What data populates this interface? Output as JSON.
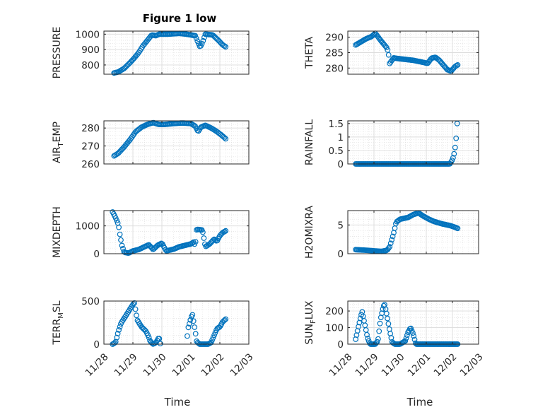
{
  "figure": {
    "title": "Figure 1 low",
    "xlabel": "Time"
  },
  "chart_data": [
    {
      "type": "scatter",
      "name": "PRESSURE",
      "ylabel": "PRESSURE",
      "ylabel_parts": [
        "PRESSURE"
      ],
      "xlim": [
        0,
        5
      ],
      "ylim": [
        740,
        1020
      ],
      "yticks": [
        800,
        900,
        1000
      ],
      "ytick_labels": [
        "800",
        "900",
        "1000"
      ],
      "xticks": [
        0,
        1,
        2,
        3,
        4,
        5
      ],
      "xtick_labels": [
        "11/28",
        "11/29",
        "11/30",
        "12/01",
        "12/02",
        "12/03"
      ],
      "show_xticklabels": false,
      "title": "Figure 1 low",
      "keys": [
        [
          0.35,
          748
        ],
        [
          0.5,
          755
        ],
        [
          0.7,
          778
        ],
        [
          0.9,
          815
        ],
        [
          1.05,
          845
        ],
        [
          1.2,
          880
        ],
        [
          1.35,
          925
        ],
        [
          1.5,
          960
        ],
        [
          1.65,
          995
        ],
        [
          1.8,
          990
        ],
        [
          1.9,
          1000
        ],
        [
          2.2,
          1000
        ],
        [
          2.6,
          1005
        ],
        [
          2.85,
          1000
        ],
        [
          3.15,
          990
        ],
        [
          3.25,
          945
        ],
        [
          3.32,
          915
        ],
        [
          3.4,
          945
        ],
        [
          3.5,
          1000
        ],
        [
          3.75,
          995
        ],
        [
          3.95,
          960
        ],
        [
          4.1,
          930
        ],
        [
          4.2,
          918
        ]
      ],
      "gaps": [],
      "n": 100
    },
    {
      "type": "scatter",
      "name": "THETA",
      "ylabel": "THETA",
      "ylabel_parts": [
        "THETA"
      ],
      "xlim": [
        0,
        5
      ],
      "ylim": [
        278,
        292
      ],
      "yticks": [
        280,
        285,
        290
      ],
      "ytick_labels": [
        "280",
        "285",
        "290"
      ],
      "xticks": [
        0,
        1,
        2,
        3,
        4,
        5
      ],
      "xtick_labels": [
        "11/28",
        "11/29",
        "11/30",
        "12/01",
        "12/02",
        "12/03"
      ],
      "show_xticklabels": false,
      "title": "",
      "keys": [
        [
          0.3,
          287.5
        ],
        [
          0.5,
          288.5
        ],
        [
          0.7,
          289.5
        ],
        [
          0.9,
          290.2
        ],
        [
          1.05,
          291.3
        ],
        [
          1.2,
          289.6
        ],
        [
          1.35,
          288
        ],
        [
          1.5,
          286.5
        ],
        [
          1.55,
          285
        ],
        [
          1.6,
          281.5
        ],
        [
          1.75,
          283.3
        ],
        [
          2.0,
          283
        ],
        [
          2.5,
          282.5
        ],
        [
          2.8,
          282
        ],
        [
          3.05,
          281.5
        ],
        [
          3.2,
          283.2
        ],
        [
          3.35,
          283.5
        ],
        [
          3.5,
          282.5
        ],
        [
          3.65,
          281
        ],
        [
          3.8,
          279.5
        ],
        [
          3.95,
          279
        ],
        [
          4.1,
          280.5
        ],
        [
          4.2,
          281
        ]
      ],
      "gaps": [],
      "n": 100
    },
    {
      "type": "scatter",
      "name": "AIR_TEMP",
      "ylabel": "AIR_TEMP",
      "ylabel_parts": [
        "AIR",
        "T",
        "EMP"
      ],
      "xlim": [
        0,
        5
      ],
      "ylim": [
        260,
        284
      ],
      "yticks": [
        260,
        270,
        280
      ],
      "ytick_labels": [
        "260",
        "270",
        "280"
      ],
      "xticks": [
        0,
        1,
        2,
        3,
        4,
        5
      ],
      "xtick_labels": [
        "11/28",
        "11/29",
        "11/30",
        "12/01",
        "12/02",
        "12/03"
      ],
      "show_xticklabels": false,
      "title": "",
      "keys": [
        [
          0.35,
          264.5
        ],
        [
          0.5,
          266
        ],
        [
          0.7,
          269.5
        ],
        [
          0.9,
          273.5
        ],
        [
          1.1,
          278
        ],
        [
          1.3,
          280.5
        ],
        [
          1.5,
          282
        ],
        [
          1.7,
          283
        ],
        [
          1.9,
          282
        ],
        [
          2.1,
          282
        ],
        [
          2.4,
          282.5
        ],
        [
          2.7,
          282.8
        ],
        [
          3.0,
          282.5
        ],
        [
          3.15,
          281
        ],
        [
          3.25,
          278
        ],
        [
          3.35,
          280.5
        ],
        [
          3.5,
          281.5
        ],
        [
          3.7,
          280
        ],
        [
          3.9,
          278
        ],
        [
          4.1,
          275.5
        ],
        [
          4.2,
          274
        ]
      ],
      "gaps": [],
      "n": 100
    },
    {
      "type": "scatter",
      "name": "RAINFALL",
      "ylabel": "RAINFALL",
      "ylabel_parts": [
        "RAINFALL"
      ],
      "xlim": [
        0,
        5
      ],
      "ylim": [
        0,
        1.6
      ],
      "yticks": [
        0,
        0.5,
        1,
        1.5
      ],
      "ytick_labels": [
        "0",
        "0.5",
        "1",
        "1.5"
      ],
      "xticks": [
        0,
        1,
        2,
        3,
        4,
        5
      ],
      "xtick_labels": [
        "11/28",
        "11/29",
        "11/30",
        "12/01",
        "12/02",
        "12/03"
      ],
      "show_xticklabels": false,
      "title": "",
      "keys": [
        [
          0.3,
          0
        ],
        [
          3.9,
          0
        ],
        [
          3.98,
          0.12
        ],
        [
          4.05,
          0.3
        ],
        [
          4.1,
          0.6
        ],
        [
          4.13,
          0.8
        ],
        [
          4.18,
          1.5
        ]
      ],
      "gaps": [],
      "n": 100
    },
    {
      "type": "scatter",
      "name": "MIXDEPTH",
      "ylabel": "MIXDEPTH",
      "ylabel_parts": [
        "MIXDEPTH"
      ],
      "xlim": [
        0,
        5
      ],
      "ylim": [
        0,
        1550
      ],
      "yticks": [
        0,
        1000
      ],
      "ytick_labels": [
        "0",
        "1000"
      ],
      "xticks": [
        0,
        1,
        2,
        3,
        4,
        5
      ],
      "xtick_labels": [
        "11/28",
        "11/29",
        "11/30",
        "12/01",
        "12/02",
        "12/03"
      ],
      "show_xticklabels": false,
      "title": "",
      "keys": [
        [
          0.3,
          1500
        ],
        [
          0.4,
          1300
        ],
        [
          0.5,
          1050
        ],
        [
          0.55,
          700
        ],
        [
          0.62,
          300
        ],
        [
          0.7,
          50
        ],
        [
          0.85,
          20
        ],
        [
          1.0,
          100
        ],
        [
          1.2,
          150
        ],
        [
          1.4,
          250
        ],
        [
          1.55,
          320
        ],
        [
          1.7,
          150
        ],
        [
          1.85,
          300
        ],
        [
          2.0,
          380
        ],
        [
          2.15,
          100
        ],
        [
          2.4,
          160
        ],
        [
          2.6,
          250
        ],
        [
          2.8,
          300
        ],
        [
          3.0,
          350
        ],
        [
          3.1,
          420
        ],
        [
          3.15,
          280
        ],
        [
          3.2,
          880
        ],
        [
          3.4,
          850
        ],
        [
          3.5,
          250
        ],
        [
          3.65,
          350
        ],
        [
          3.8,
          520
        ],
        [
          3.9,
          450
        ],
        [
          4.0,
          650
        ],
        [
          4.1,
          760
        ],
        [
          4.2,
          820
        ]
      ],
      "gaps": [],
      "n": 110
    },
    {
      "type": "scatter",
      "name": "H2OMIXRA",
      "ylabel": "H2OMIXRA",
      "ylabel_parts": [
        "H2OMIXRA"
      ],
      "xlim": [
        0,
        5
      ],
      "ylim": [
        0,
        7.5
      ],
      "yticks": [
        0,
        5
      ],
      "ytick_labels": [
        "0",
        "5"
      ],
      "xticks": [
        0,
        1,
        2,
        3,
        4,
        5
      ],
      "xtick_labels": [
        "11/28",
        "11/29",
        "11/30",
        "12/01",
        "12/02",
        "12/03"
      ],
      "show_xticklabels": false,
      "title": "",
      "keys": [
        [
          0.3,
          0.7
        ],
        [
          0.7,
          0.6
        ],
        [
          1.0,
          0.5
        ],
        [
          1.3,
          0.4
        ],
        [
          1.5,
          0.6
        ],
        [
          1.6,
          1.2
        ],
        [
          1.75,
          3.5
        ],
        [
          1.85,
          5.5
        ],
        [
          2.0,
          6.0
        ],
        [
          2.3,
          6.3
        ],
        [
          2.5,
          6.8
        ],
        [
          2.7,
          7.1
        ],
        [
          2.9,
          6.5
        ],
        [
          3.1,
          6.0
        ],
        [
          3.3,
          5.6
        ],
        [
          3.6,
          5.2
        ],
        [
          3.9,
          4.9
        ],
        [
          4.1,
          4.6
        ],
        [
          4.2,
          4.4
        ]
      ],
      "gaps": [],
      "n": 100
    },
    {
      "type": "scatter",
      "name": "TERR_MSL",
      "ylabel": "TERR_MSL",
      "ylabel_parts": [
        "TERR",
        "M",
        "SL"
      ],
      "xlim": [
        0,
        5
      ],
      "ylim": [
        0,
        500
      ],
      "yticks": [
        0,
        500
      ],
      "ytick_labels": [
        "0",
        "500"
      ],
      "xticks": [
        0,
        1,
        2,
        3,
        4,
        5
      ],
      "xtick_labels": [
        "11/28",
        "11/29",
        "11/30",
        "12/01",
        "12/02",
        "12/03"
      ],
      "show_xticklabels": true,
      "title": "",
      "keys": [
        [
          0.3,
          0
        ],
        [
          0.4,
          20
        ],
        [
          0.5,
          150
        ],
        [
          0.6,
          250
        ],
        [
          0.7,
          300
        ],
        [
          0.85,
          380
        ],
        [
          1.0,
          460
        ],
        [
          1.05,
          480
        ],
        [
          1.15,
          280
        ],
        [
          1.3,
          200
        ],
        [
          1.45,
          150
        ],
        [
          1.55,
          80
        ],
        [
          1.6,
          30
        ],
        [
          1.7,
          0
        ],
        [
          1.8,
          20
        ],
        [
          1.9,
          80
        ],
        [
          1.95,
          0
        ],
        [
          2.85,
          0
        ],
        [
          2.9,
          180
        ],
        [
          3.0,
          300
        ],
        [
          3.05,
          350
        ],
        [
          3.1,
          250
        ],
        [
          3.15,
          150
        ],
        [
          3.2,
          30
        ],
        [
          3.3,
          0
        ],
        [
          3.6,
          0
        ],
        [
          3.7,
          20
        ],
        [
          3.8,
          100
        ],
        [
          3.9,
          180
        ],
        [
          4.0,
          200
        ],
        [
          4.1,
          260
        ],
        [
          4.2,
          290
        ]
      ],
      "gaps": [
        [
          1.95,
          2.85
        ]
      ],
      "n": 110
    },
    {
      "type": "scatter",
      "name": "SUN_FLUX",
      "ylabel": "SUN_FLUX",
      "ylabel_parts": [
        "SUN",
        "F",
        "LUX"
      ],
      "xlim": [
        0,
        5
      ],
      "ylim": [
        0,
        260
      ],
      "yticks": [
        0,
        100,
        200
      ],
      "ytick_labels": [
        "0",
        "100",
        "200"
      ],
      "xticks": [
        0,
        1,
        2,
        3,
        4,
        5
      ],
      "xtick_labels": [
        "11/28",
        "11/29",
        "11/30",
        "12/01",
        "12/02",
        "12/03"
      ],
      "show_xticklabels": true,
      "title": "",
      "keys": [
        [
          0.3,
          30
        ],
        [
          0.4,
          100
        ],
        [
          0.5,
          170
        ],
        [
          0.55,
          195
        ],
        [
          0.65,
          120
        ],
        [
          0.75,
          40
        ],
        [
          0.85,
          0
        ],
        [
          1.05,
          0
        ],
        [
          1.15,
          20
        ],
        [
          1.25,
          150
        ],
        [
          1.35,
          220
        ],
        [
          1.4,
          245
        ],
        [
          1.5,
          170
        ],
        [
          1.6,
          80
        ],
        [
          1.7,
          10
        ],
        [
          1.8,
          0
        ],
        [
          2.0,
          0
        ],
        [
          2.2,
          20
        ],
        [
          2.3,
          70
        ],
        [
          2.4,
          100
        ],
        [
          2.5,
          60
        ],
        [
          2.6,
          0
        ],
        [
          4.2,
          0
        ]
      ],
      "gaps": [],
      "n": 110
    }
  ],
  "colors": {
    "marker": "#0072BD",
    "grid": "#dcdcdc",
    "axis": "#262626"
  }
}
